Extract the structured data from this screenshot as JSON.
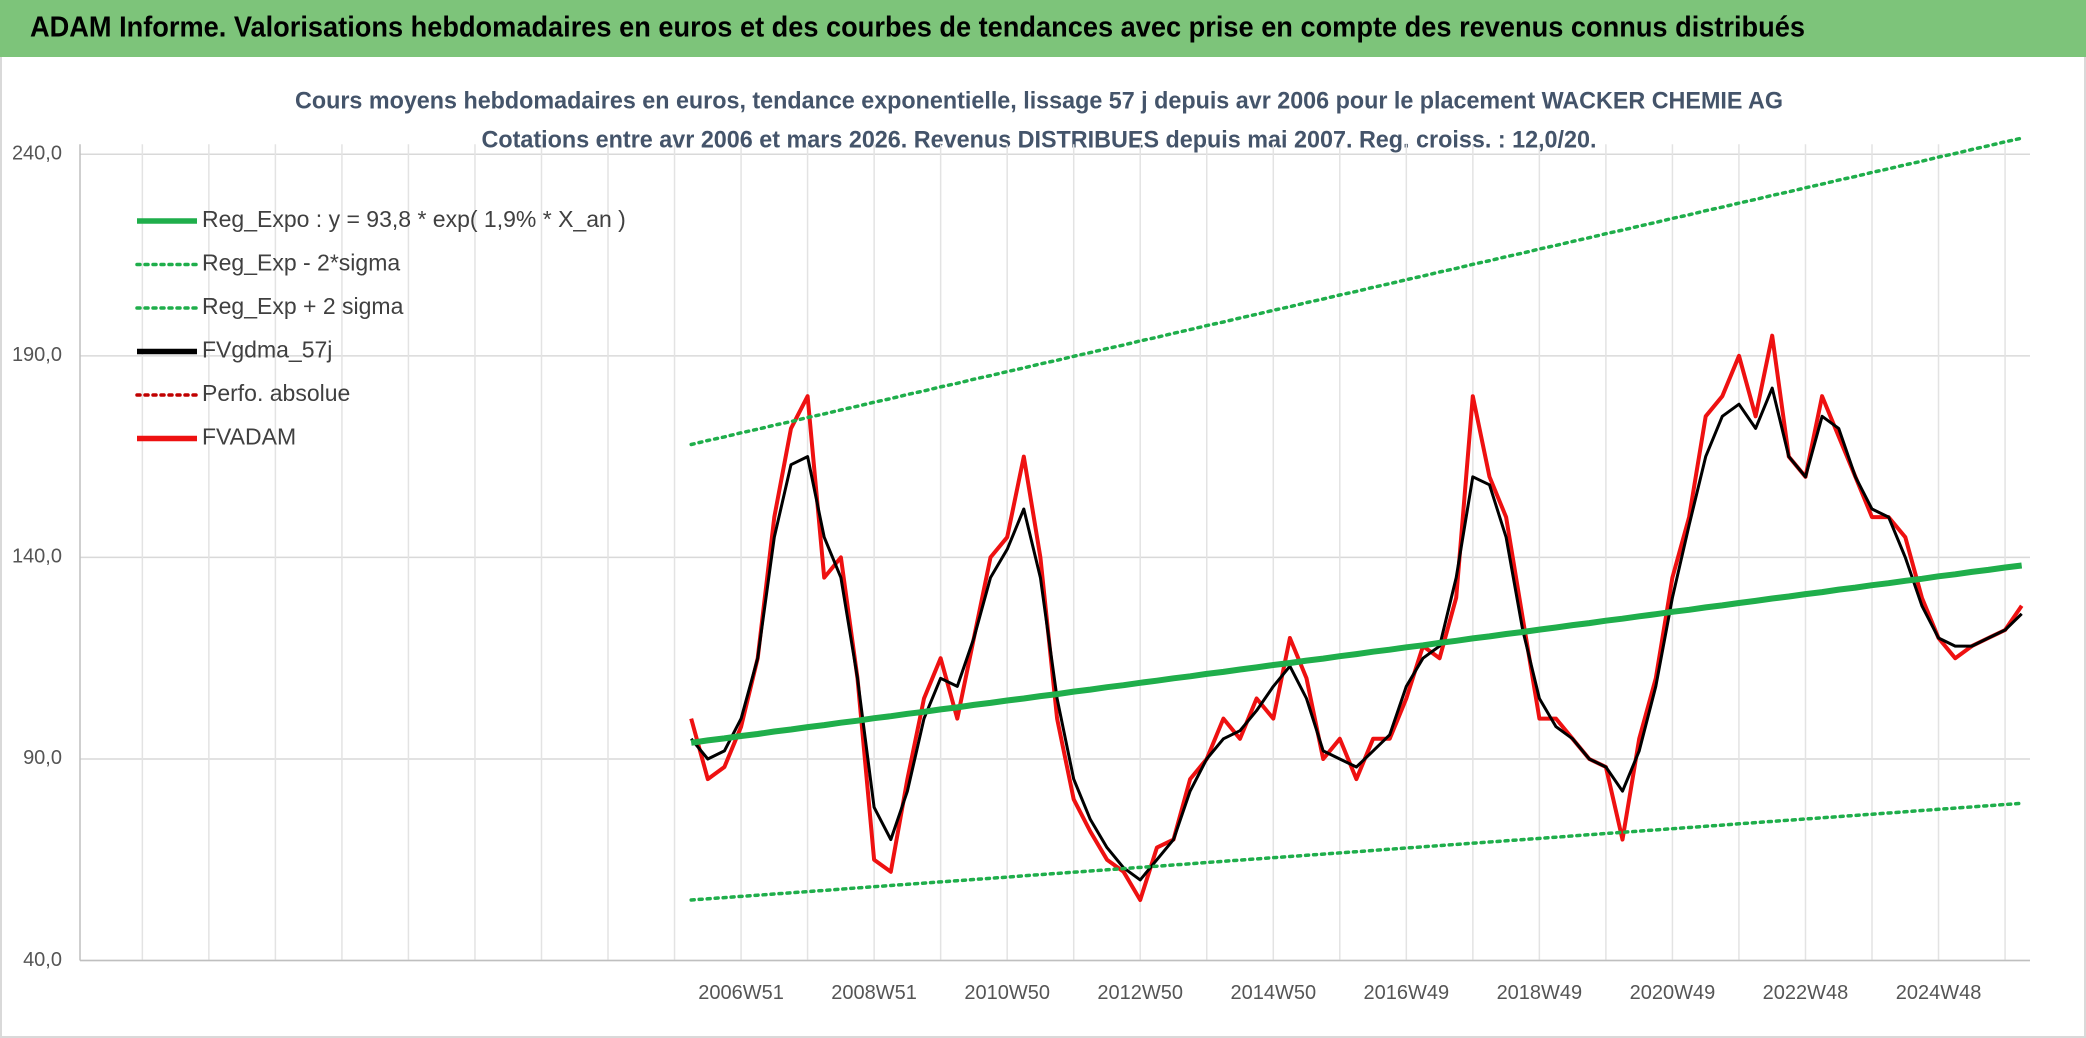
{
  "header": {
    "title": "ADAM Informe. Valorisations hebdomadaires en euros et des courbes de tendances avec prise en compte des revenus connus distribués"
  },
  "chart_data": {
    "type": "line",
    "title": "Cours moyens hebdomadaires en euros, tendance exponentielle, lissage 57 j depuis avr 2006 pour le placement WACKER CHEMIE AG",
    "subtitle": "Cotations entre avr 2006 et mars 2026. Revenus DISTRIBUES depuis mai 2007. Reg. croiss. : 12,0/20.",
    "categories": [
      null,
      null,
      null,
      null,
      null,
      null,
      null,
      null,
      null,
      null,
      null,
      null,
      null,
      null,
      null,
      null,
      null,
      null,
      null,
      null,
      null,
      null,
      null,
      null,
      null,
      null,
      null,
      null,
      null,
      null,
      null,
      null,
      null,
      null,
      null,
      null,
      null,
      null,
      null,
      null,
      "2006W51",
      null,
      null,
      null,
      null,
      null,
      null,
      null,
      "2008W51",
      null,
      null,
      null,
      null,
      null,
      null,
      null,
      "2010W50",
      null,
      null,
      null,
      null,
      null,
      null,
      null,
      "2012W50",
      null,
      null,
      null,
      null,
      null,
      null,
      null,
      "2014W50",
      null,
      null,
      null,
      null,
      null,
      null,
      null,
      "2016W49",
      null,
      null,
      null,
      null,
      null,
      null,
      null,
      "2018W49",
      null,
      null,
      null,
      null,
      null,
      null,
      null,
      "2020W49",
      null,
      null,
      null,
      null,
      null,
      null,
      null,
      "2022W48",
      null,
      null,
      null,
      null,
      null,
      null,
      null,
      "2024W48",
      null,
      null,
      null,
      null,
      null
    ],
    "ylim": [
      40,
      240
    ],
    "yticks": [
      {
        "value": 40,
        "label": "40,0"
      },
      {
        "value": 90,
        "label": "90,0"
      },
      {
        "value": 140,
        "label": "140,0"
      },
      {
        "value": 190,
        "label": "190,0"
      },
      {
        "value": 240,
        "label": "240,0"
      }
    ],
    "grid": true,
    "legend": "upper left",
    "series": [
      {
        "name": "Reg_Expo : y = 93,8 * exp( 1,9% *  X_an )",
        "color": "#1fae4b",
        "style": "solid",
        "width": 6,
        "values": [
          null,
          null,
          null,
          null,
          null,
          null,
          null,
          null,
          null,
          null,
          null,
          null,
          null,
          null,
          null,
          null,
          null,
          null,
          null,
          null,
          null,
          null,
          null,
          null,
          null,
          null,
          null,
          null,
          null,
          null,
          null,
          null,
          null,
          null,
          null,
          null,
          null,
          94,
          94.6,
          95.1,
          95.7,
          96.2,
          96.8,
          97.3,
          97.9,
          98.4,
          99,
          99.5,
          100.1,
          100.6,
          101.2,
          101.7,
          102.3,
          102.8,
          103.4,
          103.9,
          104.5,
          105,
          105.6,
          106.1,
          106.7,
          107.2,
          107.8,
          108.3,
          108.9,
          109.4,
          110,
          110.5,
          111.1,
          111.6,
          112.2,
          112.7,
          113.3,
          113.8,
          114.4,
          114.9,
          115.5,
          116,
          116.6,
          117.1,
          117.7,
          118.2,
          118.8,
          119.3,
          119.9,
          120.4,
          121,
          121.5,
          122.1,
          122.6,
          123.2,
          123.7,
          124.3,
          124.8,
          125.4,
          125.9,
          126.5,
          127,
          127.6,
          128.1,
          128.7,
          129.2,
          129.8,
          130.3,
          130.9,
          131.4,
          132,
          132.5,
          133.1,
          133.6,
          134.2,
          134.7,
          135.3,
          135.8,
          136.4,
          136.9,
          137.5,
          138
        ]
      },
      {
        "name": "Reg_Exp - 2*sigma",
        "color": "#1fae4b",
        "style": "dotted",
        "width": 3.5,
        "values": [
          null,
          null,
          null,
          null,
          null,
          null,
          null,
          null,
          null,
          null,
          null,
          null,
          null,
          null,
          null,
          null,
          null,
          null,
          null,
          null,
          null,
          null,
          null,
          null,
          null,
          null,
          null,
          null,
          null,
          null,
          null,
          null,
          null,
          null,
          null,
          null,
          null,
          55,
          55.3,
          55.6,
          55.9,
          56.2,
          56.5,
          56.8,
          57.1,
          57.4,
          57.7,
          58,
          58.3,
          58.6,
          58.9,
          59.2,
          59.5,
          59.8,
          60.1,
          60.4,
          60.7,
          61,
          61.3,
          61.6,
          61.9,
          62.2,
          62.5,
          62.8,
          63.1,
          63.4,
          63.7,
          64,
          64.3,
          64.6,
          64.9,
          65.2,
          65.5,
          65.8,
          66.1,
          66.4,
          66.7,
          67,
          67.3,
          67.6,
          67.9,
          68.2,
          68.5,
          68.8,
          69.1,
          69.4,
          69.7,
          70,
          70.3,
          70.6,
          70.9,
          71.2,
          71.5,
          71.8,
          72.1,
          72.4,
          72.7,
          73,
          73.3,
          73.6,
          73.9,
          74.2,
          74.5,
          74.8,
          75.1,
          75.4,
          75.7,
          76,
          76.3,
          76.6,
          76.9,
          77.2,
          77.5,
          77.8,
          78.1,
          78.4,
          78.7,
          79
        ]
      },
      {
        "name": "Reg_Exp + 2 sigma",
        "color": "#1fae4b",
        "style": "dotted",
        "width": 3.5,
        "values": [
          null,
          null,
          null,
          null,
          null,
          null,
          null,
          null,
          null,
          null,
          null,
          null,
          null,
          null,
          null,
          null,
          null,
          null,
          null,
          null,
          null,
          null,
          null,
          null,
          null,
          null,
          null,
          null,
          null,
          null,
          null,
          null,
          null,
          null,
          null,
          null,
          null,
          168,
          169,
          169.9,
          170.9,
          171.8,
          172.8,
          173.7,
          174.7,
          175.6,
          176.6,
          177.5,
          178.5,
          179.4,
          180.4,
          181.3,
          182.3,
          183.2,
          184.2,
          185.1,
          186.1,
          187,
          188,
          188.9,
          189.9,
          190.8,
          191.8,
          192.7,
          193.7,
          194.6,
          195.6,
          196.5,
          197.5,
          198.4,
          199.4,
          200.3,
          201.3,
          202.2,
          203.2,
          204.1,
          205.1,
          206,
          207,
          207.9,
          208.9,
          209.8,
          210.8,
          211.7,
          212.7,
          213.6,
          214.6,
          215.5,
          216.5,
          217.4,
          218.4,
          219.3,
          220.3,
          221.2,
          222.2,
          223.1,
          224.1,
          225,
          226,
          226.9,
          227.9,
          228.8,
          229.8,
          230.7,
          231.7,
          232.6,
          233.6,
          234.5,
          235.5,
          236.4,
          237.4,
          238.3,
          239.3,
          240.2,
          241.2,
          242.1,
          243.1,
          244
        ]
      },
      {
        "name": "FVgdma_57j",
        "color": "#000000",
        "style": "solid",
        "width": 3,
        "values": [
          null,
          null,
          null,
          null,
          null,
          null,
          null,
          null,
          null,
          null,
          null,
          null,
          null,
          null,
          null,
          null,
          null,
          null,
          null,
          null,
          null,
          null,
          null,
          null,
          null,
          null,
          null,
          null,
          null,
          null,
          null,
          null,
          null,
          null,
          null,
          null,
          null,
          95,
          90,
          92,
          100,
          115,
          145,
          163,
          165,
          145,
          135,
          110,
          78,
          70,
          82,
          100,
          110,
          108,
          120,
          135,
          142,
          152,
          135,
          105,
          85,
          75,
          68,
          63,
          60,
          65,
          70,
          82,
          90,
          95,
          97,
          102,
          108,
          113,
          105,
          92,
          90,
          88,
          92,
          96,
          108,
          115,
          118,
          135,
          160,
          158,
          145,
          122,
          105,
          98,
          95,
          90,
          88,
          82,
          92,
          108,
          130,
          148,
          165,
          175,
          178,
          172,
          182,
          165,
          160,
          175,
          172,
          160,
          152,
          150,
          140,
          128,
          120,
          118,
          118,
          120,
          122,
          126
        ]
      },
      {
        "name": "Perfo. absolue",
        "color": "#c00000",
        "style": "dotted",
        "width": 2.5
      },
      {
        "name": "FVADAM",
        "color": "#ee1111",
        "style": "solid",
        "width": 4,
        "values": [
          null,
          null,
          null,
          null,
          null,
          null,
          null,
          null,
          null,
          null,
          null,
          null,
          null,
          null,
          null,
          null,
          null,
          null,
          null,
          null,
          null,
          null,
          null,
          null,
          null,
          null,
          null,
          null,
          null,
          null,
          null,
          null,
          null,
          null,
          null,
          null,
          null,
          100,
          85,
          88,
          98,
          115,
          150,
          172,
          180,
          135,
          140,
          110,
          65,
          62,
          85,
          105,
          115,
          100,
          120,
          140,
          145,
          165,
          140,
          100,
          80,
          72,
          65,
          62,
          55,
          68,
          70,
          85,
          90,
          100,
          95,
          105,
          100,
          120,
          110,
          90,
          95,
          85,
          95,
          95,
          105,
          118,
          115,
          130,
          180,
          160,
          150,
          125,
          100,
          100,
          95,
          90,
          88,
          70,
          95,
          110,
          135,
          150,
          175,
          180,
          190,
          175,
          195,
          165,
          160,
          180,
          170,
          160,
          150,
          150,
          145,
          130,
          120,
          115,
          118,
          120,
          122,
          128
        ]
      }
    ]
  }
}
